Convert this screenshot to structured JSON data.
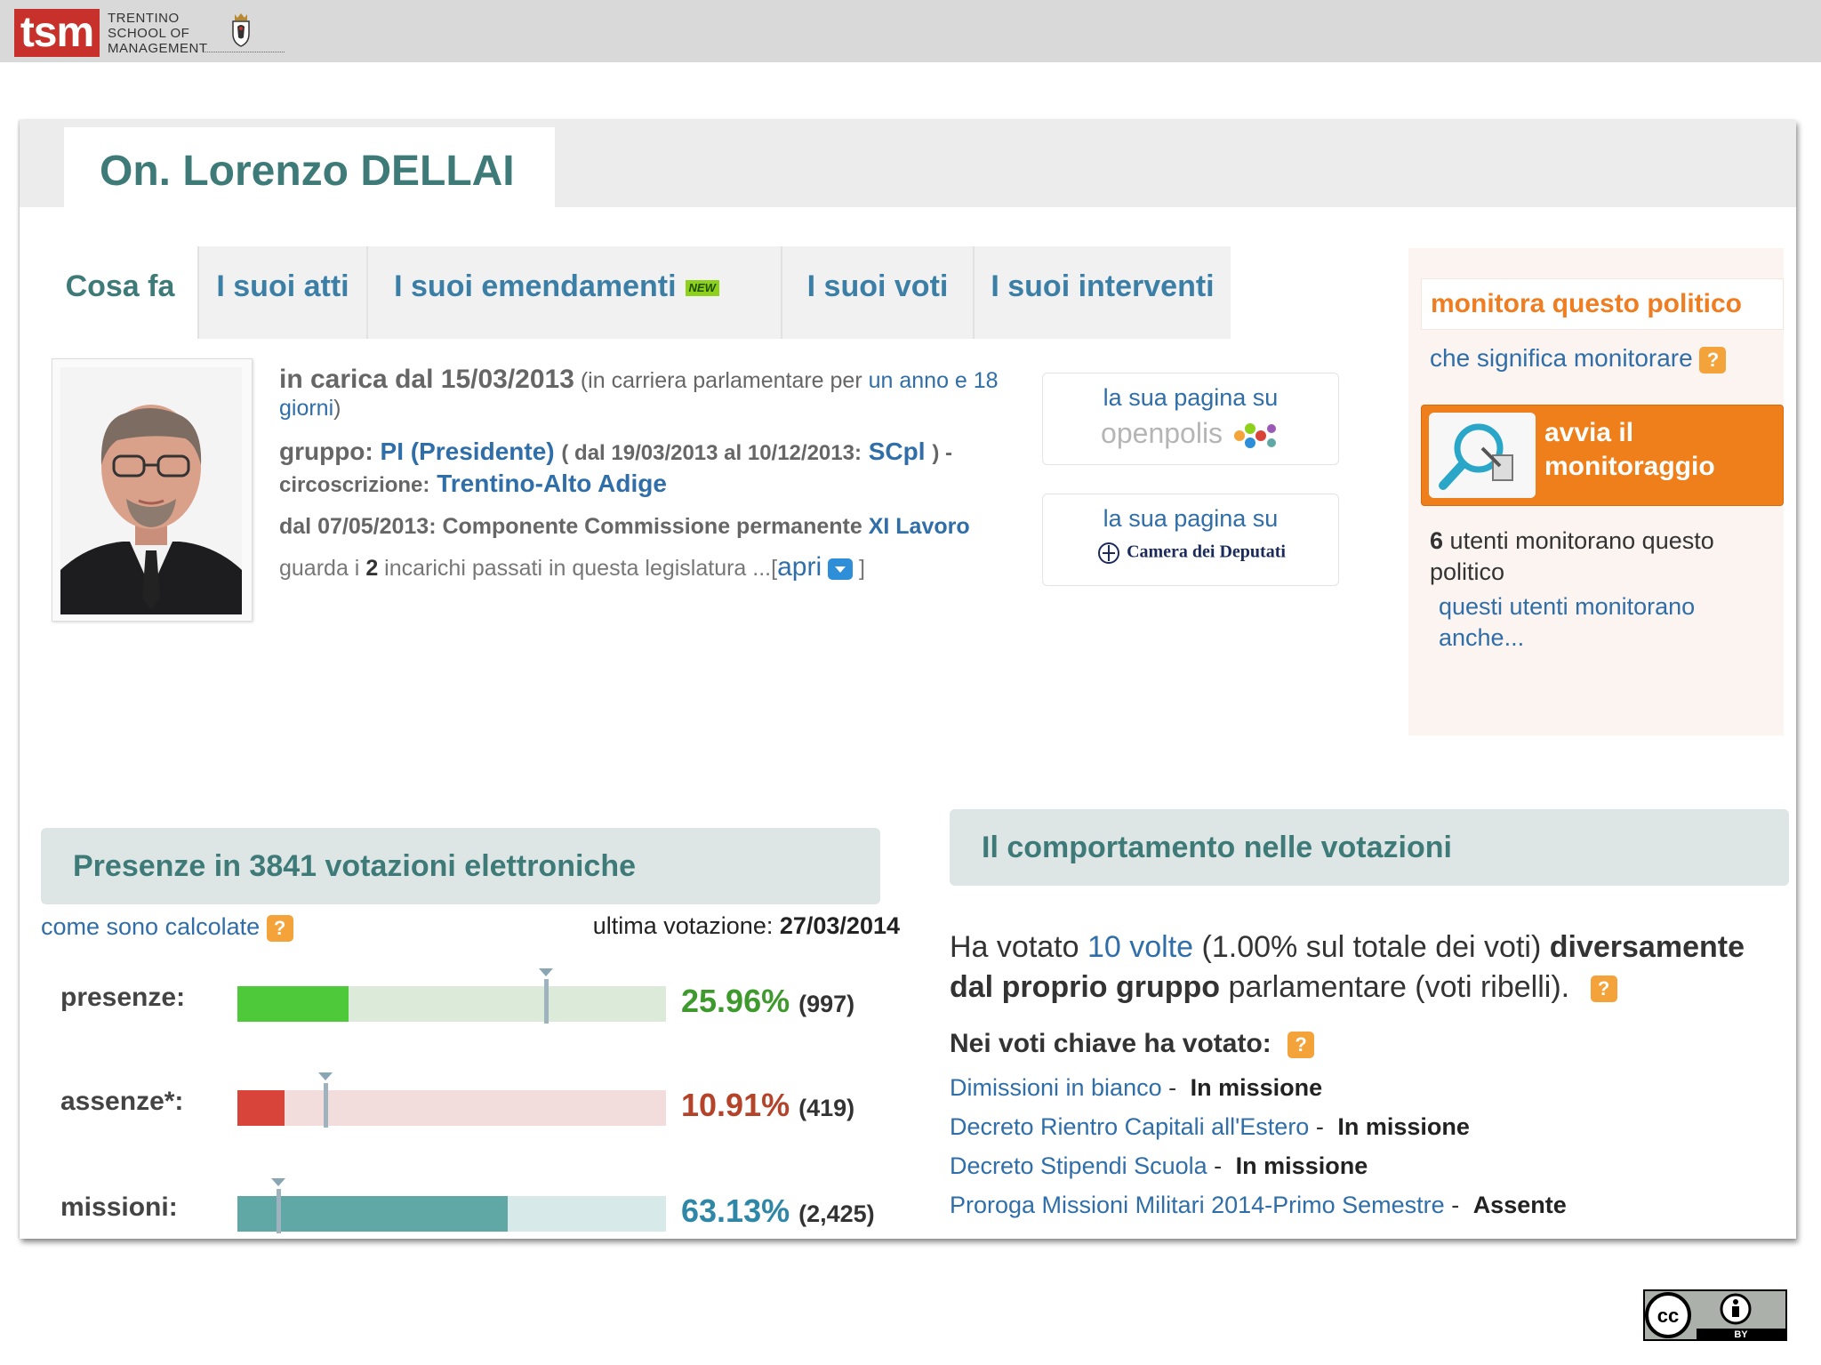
{
  "topbar": {
    "logo_abbr": "tsm",
    "logo_lines": [
      "TRENTINO",
      "SCHOOL OF",
      "MANAGEMENT"
    ],
    "crest": "provincia-crest-icon"
  },
  "header": {
    "politician_name": "On. Lorenzo DELLAI"
  },
  "tabs": [
    {
      "label": "Cosa fa",
      "active": true
    },
    {
      "label": "I suoi atti",
      "active": false
    },
    {
      "label": "I suoi emendamenti",
      "active": false,
      "badge": "NEW"
    },
    {
      "label": "I suoi voti",
      "active": false
    },
    {
      "label": "I suoi interventi",
      "active": false
    }
  ],
  "profile": {
    "in_office": "in carica dal 15/03/2013",
    "career_prefix": "(in carriera parlamentare per ",
    "career_duration": "un anno e 18 giorni",
    "career_suffix": ")",
    "group_label": "gruppo:",
    "group_name": "PI (Presidente)",
    "group_prev_prefix": "( dal 19/03/2013 al 10/12/2013:",
    "group_prev_name": "SCpl",
    "constituency_label": ") - circoscrizione:",
    "constituency": "Trentino-Alto Adige",
    "role_text": "dal 07/05/2013: Componente Commissione permanente",
    "role_link": "XI Lavoro",
    "past_prefix": "guarda i",
    "past_count": "2",
    "past_suffix": "incarichi passati in questa legislatura ...[",
    "past_open": "apri",
    "past_close": "]"
  },
  "pages": {
    "openpolis_label": "la sua pagina su",
    "openpolis_name": "openpolis",
    "camera_label": "la sua pagina su",
    "camera_name": "Camera dei Deputati"
  },
  "monitor": {
    "title": "monitora questo politico",
    "what_link": "che significa monitorare",
    "button_label": "avvia il monitoraggio",
    "count": "6",
    "count_text": "utenti monitorano questo politico",
    "also_link": "questi utenti monitorano anche..."
  },
  "presence": {
    "heading": "Presenze in 3841 votazioni elettroniche",
    "calc_link": "come sono calcolate",
    "last_vote_label": "ultima votazione:",
    "last_vote_date": "27/03/2014",
    "bars": [
      {
        "label": "presenze:",
        "percent_text": "25.96%",
        "count_text": "(997)",
        "value": 25.96,
        "avg_marker": 72,
        "fill": "#4dc93a",
        "track": "#dcead9",
        "text_color": "#3f9a2e",
        "marker_color": "#9fb3be"
      },
      {
        "label": "assenze*:",
        "percent_text": "10.91%",
        "count_text": "(419)",
        "value": 10.91,
        "avg_marker": 20.5,
        "fill": "#d9443a",
        "track": "#f2dcdc",
        "text_color": "#b5432a",
        "marker_color": "#9fb3be"
      },
      {
        "label": "missioni:",
        "percent_text": "63.13%",
        "count_text": "(2,425)",
        "value": 63.13,
        "avg_marker": 9.5,
        "fill": "#5fa8a6",
        "track": "#d7e9e9",
        "text_color": "#2f87a8",
        "marker_color": "#9fb3be"
      }
    ]
  },
  "behaviour": {
    "heading": "Il comportamento nelle votazioni",
    "voted_prefix": "Ha votato",
    "voted_times": "10 volte",
    "voted_pct": "(1.00% sul totale dei voti)",
    "voted_bold": "diversamente dal proprio gruppo",
    "voted_suffix": "parlamentare (voti ribelli).",
    "key_title": "Nei voti chiave ha votato:",
    "key_votes": [
      {
        "topic": "Dimissioni in bianco",
        "vote": "In missione"
      },
      {
        "topic": "Decreto Rientro Capitali all'Estero",
        "vote": "In missione"
      },
      {
        "topic": "Decreto Stipendi Scuola",
        "vote": "In missione"
      },
      {
        "topic": "Proroga Missioni Militari 2014-Primo Semestre",
        "vote": "Assente"
      }
    ]
  },
  "license": {
    "badge_text": "BY",
    "icon": "cc-by-icon"
  },
  "colors": {
    "accent_teal": "#3d7a78",
    "link_blue": "#2f6ea8",
    "orange": "#ef7f1a",
    "tsm_red": "#c8312b"
  }
}
